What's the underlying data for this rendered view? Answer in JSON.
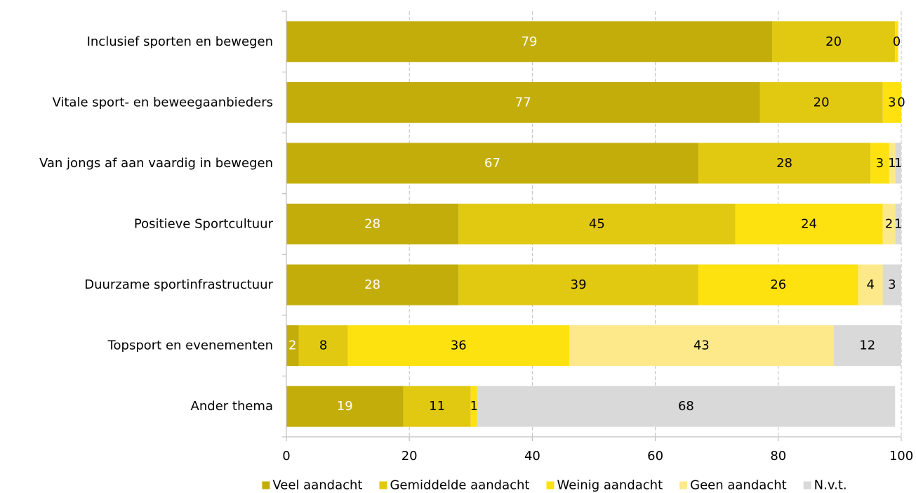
{
  "chart_data": {
    "type": "bar",
    "orientation": "horizontal",
    "stacked": true,
    "categories": [
      "Inclusief sporten en bewegen",
      "Vitale sport- en beweegaanbieders",
      "Van jongs af aan vaardig in bewegen",
      "Positieve Sportcultuur",
      "Duurzame sportinfrastructuur",
      "Topsport en evenementen",
      "Ander thema"
    ],
    "series": [
      {
        "name": "Veel aandacht",
        "color": "#c3ad0b",
        "label_color": "#ffffff",
        "values": [
          79,
          77,
          67,
          28,
          28,
          2,
          19
        ],
        "labels": [
          "79",
          "77",
          "67",
          "28",
          "28",
          "2",
          "19"
        ]
      },
      {
        "name": "Gemiddelde aandacht",
        "color": "#e1c912",
        "label_color": "#000000",
        "values": [
          20,
          20,
          28,
          45,
          39,
          8,
          11
        ],
        "labels": [
          "20",
          "20",
          "28",
          "45",
          "39",
          "8",
          "11"
        ]
      },
      {
        "name": "Weinig aandacht",
        "color": "#fde20f",
        "label_color": "#000000",
        "values": [
          0.5,
          3,
          3,
          24,
          26,
          36,
          1
        ],
        "labels": [
          "0",
          "3",
          "3",
          "24",
          "26",
          "36",
          "1"
        ]
      },
      {
        "name": "Geen aandacht",
        "color": "#fde98a",
        "label_color": "#000000",
        "values": [
          0,
          0,
          1,
          2,
          4,
          43,
          0
        ],
        "labels": [
          "",
          "",
          "1",
          "2",
          "4",
          "43",
          ""
        ]
      },
      {
        "name": "N.v.t.",
        "color": "#d9d9d9",
        "label_color": "#000000",
        "values": [
          0,
          0,
          1,
          1,
          3,
          12,
          68
        ],
        "labels": [
          "",
          "0",
          "1",
          "1",
          "3",
          "12",
          "68"
        ]
      }
    ],
    "xlim": [
      0,
      100
    ],
    "xticks": [
      0,
      20,
      40,
      60,
      80,
      100
    ],
    "grid": "vertical dashed",
    "legend_position": "bottom",
    "axis_color": "#bfbfbf"
  }
}
